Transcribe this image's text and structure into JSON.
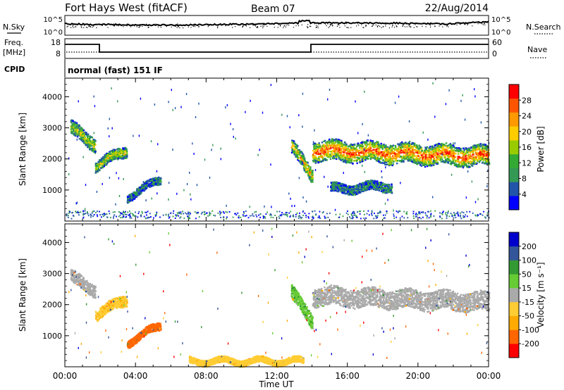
{
  "header": {
    "station": "Fort Hays West (fitACF)",
    "beam": "Beam 07",
    "date": "22/Aug/2014"
  },
  "panels": {
    "nsky": {
      "left_label": "N.Sky",
      "right_label": "N.Search",
      "left_ticks": [
        "10^5",
        "10^0"
      ],
      "right_ticks": [
        "10^5",
        "10^0"
      ]
    },
    "freq": {
      "left_label_1": "Freq.",
      "left_label_2": "[MHz]",
      "right_label": "Nave",
      "left_ticks": [
        "18",
        "8"
      ],
      "right_ticks": [
        "60",
        "0"
      ]
    },
    "cpid": {
      "label": "CPID",
      "text": "normal (fast) 151 IF"
    }
  },
  "colors": {
    "power": [
      "#0000ff",
      "#2255aa",
      "#339955",
      "#33aa33",
      "#99cc00",
      "#ffcc00",
      "#ff9900",
      "#ff5500",
      "#ff0000"
    ],
    "velocity": [
      "#ff0000",
      "#ff6600",
      "#ffaa00",
      "#ffcc33",
      "#aaaaaa",
      "#66cc33",
      "#339933",
      "#335599",
      "#0000cc"
    ]
  },
  "chart_data": [
    {
      "type": "heatmap",
      "name": "power",
      "xlabel": "Time UT",
      "ylabel": "Slant Range [km]",
      "x_ticks": [
        "00:00",
        "04:00",
        "08:00",
        "12:00",
        "16:00",
        "20:00",
        "00:00"
      ],
      "y_ticks": [
        "1000",
        "2000",
        "3000",
        "4000"
      ],
      "ylim": [
        0,
        4600
      ],
      "colorbar_label": "Power [dB]",
      "colorbar_ticks": [
        "4",
        "8",
        "12",
        "16",
        "20",
        "24",
        "28"
      ],
      "colorbar_range": [
        0,
        32
      ],
      "regions": [
        {
          "t0": 0.3,
          "t1": 1.7,
          "r_start": 3000,
          "r_end": 2500,
          "thick": 450,
          "core": 0.35
        },
        {
          "t0": 1.7,
          "t1": 3.5,
          "r_start": 1800,
          "r_end": 2300,
          "thick": 350,
          "core": 0.4
        },
        {
          "t0": 3.5,
          "t1": 5.4,
          "r_start": 800,
          "r_end": 1350,
          "thick": 250,
          "core": 0.05
        },
        {
          "t0": 12.8,
          "t1": 14.0,
          "r_start": 2400,
          "r_end": 1500,
          "thick": 450,
          "core": 0.5
        },
        {
          "t0": 14.0,
          "t1": 24.0,
          "r_start": 2300,
          "r_end": 2100,
          "thick": 650,
          "core": 0.7
        },
        {
          "t0": 15.0,
          "t1": 18.5,
          "r_start": 1050,
          "r_end": 1150,
          "thick": 300,
          "core": 0.05
        }
      ]
    },
    {
      "type": "heatmap",
      "name": "velocity",
      "xlabel": "Time UT",
      "ylabel": "Slant Range [km]",
      "x_ticks": [
        "00:00",
        "04:00",
        "08:00",
        "12:00",
        "16:00",
        "20:00",
        "00:00"
      ],
      "y_ticks": [
        "1000",
        "2000",
        "3000",
        "4000"
      ],
      "ylim": [
        0,
        4600
      ],
      "colorbar_label": "Velocity [m s⁻¹]",
      "colorbar_ticks": [
        "200",
        "100",
        "50",
        "15",
        "-15",
        "-50",
        "-100",
        "-200"
      ],
      "colorbar_range": [
        -250,
        250
      ],
      "regions": [
        {
          "t0": 0.3,
          "t1": 1.7,
          "r_start": 2900,
          "r_end": 2500,
          "thick": 400,
          "vel": 0
        },
        {
          "t0": 1.7,
          "t1": 3.5,
          "r_start": 1700,
          "r_end": 2200,
          "thick": 350,
          "vel": -40
        },
        {
          "t0": 3.5,
          "t1": 5.4,
          "r_start": 800,
          "r_end": 1350,
          "thick": 250,
          "vel": -120
        },
        {
          "t0": 12.8,
          "t1": 14.0,
          "r_start": 2400,
          "r_end": 1500,
          "thick": 450,
          "vel": 40
        },
        {
          "t0": 14.0,
          "t1": 24.0,
          "r_start": 2300,
          "r_end": 2100,
          "thick": 600,
          "vel": 0
        },
        {
          "t0": 7.0,
          "t1": 13.5,
          "r_start": 200,
          "r_end": 200,
          "thick": 200,
          "vel": -30
        }
      ]
    }
  ]
}
